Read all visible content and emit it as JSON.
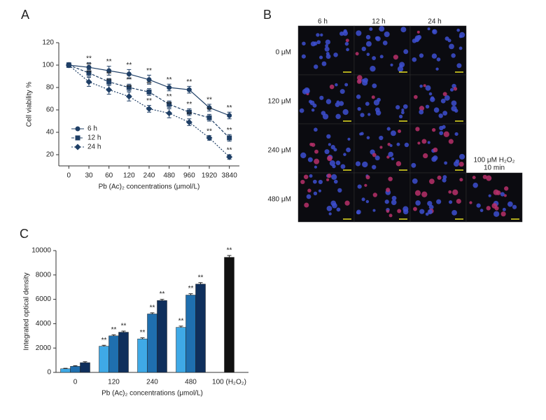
{
  "chart_data": [
    {
      "type": "line",
      "panel": "A",
      "y_label": "Cell viability %",
      "x_label": "Pb (Ac)₂ concentrations (μmol/L)",
      "categories": [
        "0",
        "30",
        "60",
        "120",
        "240",
        "480",
        "960",
        "1920",
        "3840"
      ],
      "ylim": [
        10,
        120
      ],
      "yticks": [
        20,
        40,
        60,
        80,
        100,
        120
      ],
      "color": "#1f3f66",
      "series": [
        {
          "name": "6 h",
          "marker": "circle",
          "dash": "solid",
          "values": [
            100,
            98,
            95,
            92,
            87,
            80,
            78,
            62,
            55
          ],
          "errors": [
            2,
            4,
            4,
            4,
            4,
            3,
            3,
            3,
            3
          ],
          "significance": [
            null,
            "**",
            "**",
            "**",
            "**",
            "**",
            "**",
            "**",
            "**"
          ]
        },
        {
          "name": "12 h",
          "marker": "square",
          "dash": "dashed",
          "values": [
            100,
            93,
            85,
            80,
            76,
            65,
            58,
            53,
            35
          ],
          "errors": [
            2,
            3,
            3,
            3,
            3,
            3,
            3,
            3,
            3
          ],
          "significance": [
            null,
            "**",
            "**",
            "**",
            "**",
            "**",
            "**",
            "**",
            "**"
          ]
        },
        {
          "name": "24 h",
          "marker": "diamond",
          "dash": "dotted",
          "values": [
            100,
            85,
            78,
            72,
            61,
            57,
            49,
            35,
            18
          ],
          "errors": [
            2,
            4,
            4,
            4,
            3,
            4,
            3,
            2,
            2
          ],
          "significance": [
            null,
            "**",
            "**",
            "**",
            "**",
            "**",
            "**",
            "**",
            "**"
          ]
        }
      ]
    },
    {
      "type": "bar",
      "panel": "C",
      "y_label": "Integrated optical density",
      "x_label": "Pb (Ac)₂ concentrations (μmol/L)",
      "categories": [
        "0",
        "120",
        "240",
        "480",
        "100 (H₂O₂)"
      ],
      "ylim": [
        0,
        10000
      ],
      "yticks": [
        0,
        2000,
        4000,
        6000,
        8000,
        10000
      ],
      "series": [
        {
          "color": "#3fa9e6",
          "values": [
            300,
            2150,
            2750,
            3700,
            null
          ],
          "errors": [
            40,
            80,
            90,
            100,
            null
          ],
          "significance": [
            null,
            "**",
            "**",
            "**",
            null
          ]
        },
        {
          "color": "#1f6faf",
          "values": [
            500,
            3000,
            4800,
            6350,
            null
          ],
          "errors": [
            50,
            90,
            90,
            110,
            null
          ],
          "significance": [
            null,
            "**",
            "**",
            "**",
            null
          ]
        },
        {
          "color": "#0f2f5c",
          "values": [
            800,
            3300,
            5900,
            7250,
            null
          ],
          "errors": [
            80,
            90,
            100,
            120,
            null
          ],
          "significance": [
            null,
            "**",
            "**",
            "**",
            null
          ]
        },
        {
          "color": "#111111",
          "values": [
            null,
            null,
            null,
            null,
            9450
          ],
          "errors": [
            null,
            null,
            null,
            null,
            150
          ],
          "significance": [
            null,
            null,
            null,
            null,
            "**"
          ]
        }
      ]
    }
  ],
  "image_panel": {
    "panel": "B",
    "columns": [
      "6 h",
      "12 h",
      "24 h"
    ],
    "rows": [
      "0 μM",
      "120 μM",
      "240 μM",
      "480 μM"
    ],
    "extra_label": [
      "100 μM H₂O₂",
      "10 min"
    ]
  }
}
